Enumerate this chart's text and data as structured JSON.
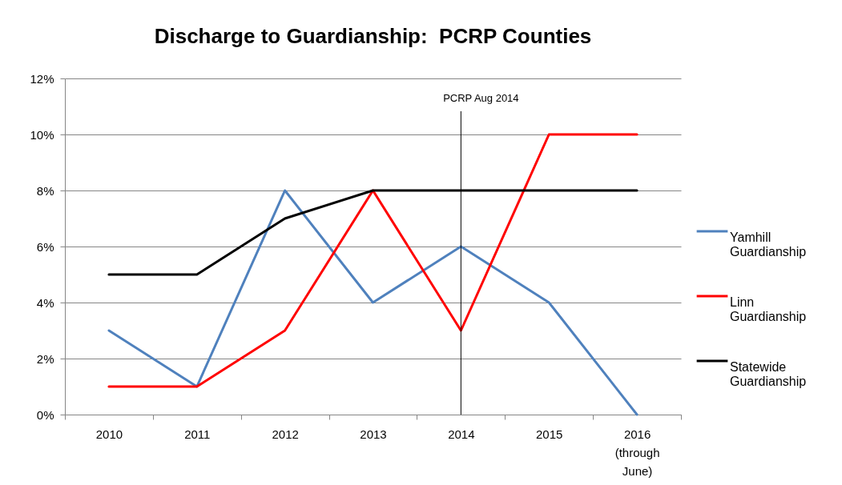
{
  "chart_data": {
    "type": "line",
    "title": "Discharge to Guardianship:  PCRP Counties",
    "categories": [
      "2010",
      "2011",
      "2012",
      "2013",
      "2014",
      "2015",
      "2016 (through June)"
    ],
    "series": [
      {
        "name": "Yamhill Guardianship",
        "color": "#4f81bd",
        "values": [
          3,
          1,
          8,
          4,
          6,
          4,
          0
        ]
      },
      {
        "name": "Linn Guardianship",
        "color": "#ff0000",
        "values": [
          1,
          1,
          3,
          8,
          3,
          10,
          10
        ]
      },
      {
        "name": "Statewide Guardianship",
        "color": "#000000",
        "values": [
          5,
          5,
          7,
          8,
          8,
          8,
          8
        ]
      }
    ],
    "ylim": [
      0,
      12
    ],
    "yticks": [
      {
        "value": 0,
        "label": "0%"
      },
      {
        "value": 2,
        "label": "2%"
      },
      {
        "value": 4,
        "label": "4%"
      },
      {
        "value": 6,
        "label": "6%"
      },
      {
        "value": 8,
        "label": "8%"
      },
      {
        "value": 10,
        "label": "10%"
      },
      {
        "value": 12,
        "label": "12%"
      }
    ],
    "ref_lines": [
      {
        "axis": "x",
        "value": "2014",
        "label": "PCRP Aug 2014",
        "color": "#000000"
      }
    ],
    "grid": "y",
    "legend": "right"
  }
}
